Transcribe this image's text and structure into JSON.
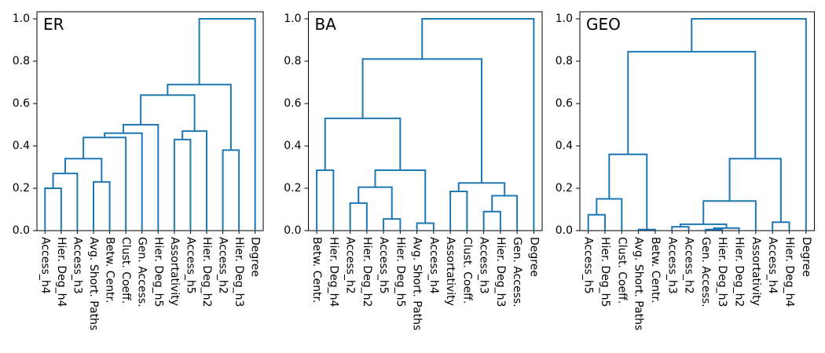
{
  "figure": {
    "background": "#ffffff",
    "line_color": "#1f77b4",
    "axis_color": "#000000",
    "text_color": "#000000"
  },
  "chart_data": [
    {
      "type": "dendrogram",
      "title": "ER",
      "ylim": [
        0,
        1.035
      ],
      "yticks": [
        0.0,
        0.2,
        0.4,
        0.6,
        0.8,
        1.0
      ],
      "grid": false,
      "leaf_rotation": 90,
      "leaves": [
        "Access_h4",
        "Hier. Deg_h4",
        "Access_h3",
        "Avg. Short. Paths",
        "Betw. Centr.",
        "Clust. Coeff.",
        "Gen. Access.",
        "Hier. Deg_h5",
        "Assortativity",
        "Access_h5",
        "Hier. Deg_h2",
        "Access_h2",
        "Hier. Deg_h3",
        "Degree"
      ],
      "merges": [
        [
          0,
          1,
          0.2
        ],
        [
          3,
          4,
          0.23
        ],
        [
          "m0",
          2,
          0.27
        ],
        [
          "m2",
          "m1",
          0.34
        ],
        [
          "m3",
          5,
          0.44
        ],
        [
          "m4",
          6,
          0.46
        ],
        [
          "m5",
          7,
          0.5
        ],
        [
          8,
          9,
          0.43
        ],
        [
          "m7",
          10,
          0.47
        ],
        [
          11,
          12,
          0.38
        ],
        [
          "m6",
          "m8",
          0.64
        ],
        [
          "m10",
          "m9",
          0.69
        ],
        [
          "m11",
          13,
          1.0
        ]
      ]
    },
    {
      "type": "dendrogram",
      "title": "BA",
      "ylim": [
        0,
        1.035
      ],
      "yticks": [
        0.0,
        0.2,
        0.4,
        0.6,
        0.8,
        1.0
      ],
      "grid": false,
      "leaf_rotation": 90,
      "leaves": [
        "Betw. Centr.",
        "Hier. Deg_h4",
        "Access_h2",
        "Hier. Deg_h2",
        "Access_h5",
        "Hier. Deg_h5",
        "Avg. Short. Paths",
        "Access_h4",
        "Assortativity",
        "Clust. Coeff.",
        "Access_h3",
        "Hier. Deg_h3",
        "Gen. Access.",
        "Degree"
      ],
      "merges": [
        [
          0,
          1,
          0.285
        ],
        [
          2,
          3,
          0.13
        ],
        [
          4,
          5,
          0.055
        ],
        [
          "m1",
          "m2",
          0.205
        ],
        [
          6,
          7,
          0.035
        ],
        [
          "m3",
          "m4",
          0.285
        ],
        [
          "m0",
          "m5",
          0.53
        ],
        [
          8,
          9,
          0.185
        ],
        [
          10,
          11,
          0.09
        ],
        [
          "m8",
          12,
          0.165
        ],
        [
          "m7",
          "m9",
          0.225
        ],
        [
          "m6",
          "m10",
          0.81
        ],
        [
          "m11",
          13,
          1.0
        ]
      ]
    },
    {
      "type": "dendrogram",
      "title": "GEO",
      "ylim": [
        0,
        1.035
      ],
      "yticks": [
        0.0,
        0.2,
        0.4,
        0.6,
        0.8,
        1.0
      ],
      "grid": false,
      "leaf_rotation": 90,
      "leaves": [
        "Access_h5",
        "Hier. Deg_h5",
        "Clust. Coeff.",
        "Avg. Short. Paths",
        "Betw. Centr.",
        "Access_h3",
        "Access_h2",
        "Gen. Access.",
        "Hier. Deg_h3",
        "Hier. Deg_h2",
        "Assortativity",
        "Access_h4",
        "Hier. Deg_h4",
        "Degree"
      ],
      "merges": [
        [
          0,
          1,
          0.075
        ],
        [
          "m0",
          2,
          0.15
        ],
        [
          3,
          4,
          0.005
        ],
        [
          "m1",
          "m2",
          0.36
        ],
        [
          7,
          8,
          0.005
        ],
        [
          "m4",
          9,
          0.012
        ],
        [
          5,
          6,
          0.018
        ],
        [
          "m6",
          "m5",
          0.03
        ],
        [
          "m7",
          10,
          0.14
        ],
        [
          11,
          12,
          0.04
        ],
        [
          "m8",
          "m9",
          0.34
        ],
        [
          "m3",
          "m10",
          0.845
        ],
        [
          "m11",
          13,
          1.0
        ]
      ]
    }
  ]
}
